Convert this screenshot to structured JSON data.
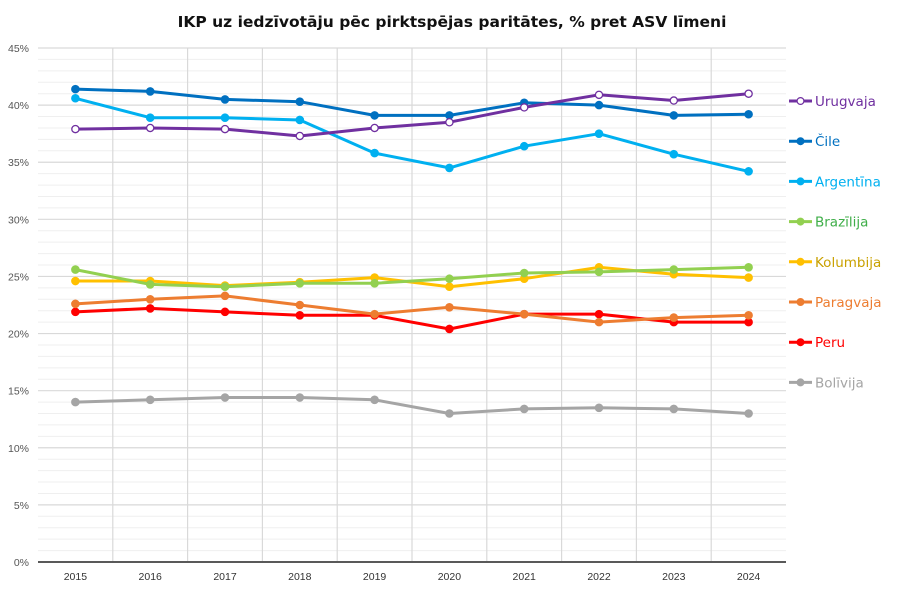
{
  "chart_data": {
    "type": "line",
    "title": "IKP uz iedzīvotāju pēc pirktspējas paritātes, % pret ASV līmeni",
    "xlabel": "",
    "ylabel": "",
    "categories": [
      "2015",
      "2016",
      "2017",
      "2018",
      "2019",
      "2020",
      "2021",
      "2022",
      "2023",
      "2024"
    ],
    "ylim": [
      0,
      45
    ],
    "y_major_step": 5,
    "y_minor_step": 1,
    "ytick_labels": [
      "0%",
      "5%",
      "10%",
      "15%",
      "20%",
      "25%",
      "30%",
      "35%",
      "40%",
      "45%"
    ],
    "grid": true,
    "legend_position": "right",
    "series": [
      {
        "name": "Urugvaja",
        "color": "#7030A0",
        "label_color": "#7030A0",
        "marker": "hollow",
        "values": [
          37.9,
          38.0,
          37.9,
          37.3,
          38.0,
          38.5,
          39.8,
          40.9,
          40.4,
          41.0
        ]
      },
      {
        "name": "Čile",
        "color": "#0070C0",
        "label_color": "#0070C0",
        "marker": "filled",
        "values": [
          41.4,
          41.2,
          40.5,
          40.3,
          39.1,
          39.1,
          40.2,
          40.0,
          39.1,
          39.2
        ]
      },
      {
        "name": "Argentīna",
        "color": "#00B0F0",
        "label_color": "#00B0F0",
        "marker": "filled",
        "values": [
          40.6,
          38.9,
          38.9,
          38.7,
          35.8,
          34.5,
          36.4,
          37.5,
          35.7,
          34.2
        ]
      },
      {
        "name": "Brazīlija",
        "color": "#92D050",
        "label_color": "#3FAE49",
        "marker": "filled",
        "values": [
          25.6,
          24.3,
          24.1,
          24.4,
          24.4,
          24.8,
          25.3,
          25.4,
          25.6,
          25.8
        ]
      },
      {
        "name": "Kolumbija",
        "color": "#FFC000",
        "label_color": "#C9A100",
        "marker": "filled",
        "values": [
          24.6,
          24.6,
          24.2,
          24.5,
          24.9,
          24.1,
          24.8,
          25.8,
          25.2,
          24.9
        ]
      },
      {
        "name": "Paragvaja",
        "color": "#ED7D31",
        "label_color": "#ED7D31",
        "marker": "filled",
        "values": [
          22.6,
          23.0,
          23.3,
          22.5,
          21.7,
          22.3,
          21.7,
          21.0,
          21.4,
          21.6
        ]
      },
      {
        "name": "Peru",
        "color": "#FF0000",
        "label_color": "#FF0000",
        "marker": "filled",
        "values": [
          21.9,
          22.2,
          21.9,
          21.6,
          21.6,
          20.4,
          21.7,
          21.7,
          21.0,
          21.0
        ]
      },
      {
        "name": "Bolīvija",
        "color": "#A5A5A5",
        "label_color": "#A5A5A5",
        "marker": "filled",
        "values": [
          14.0,
          14.2,
          14.4,
          14.4,
          14.2,
          13.0,
          13.4,
          13.5,
          13.4,
          13.0
        ]
      }
    ]
  }
}
